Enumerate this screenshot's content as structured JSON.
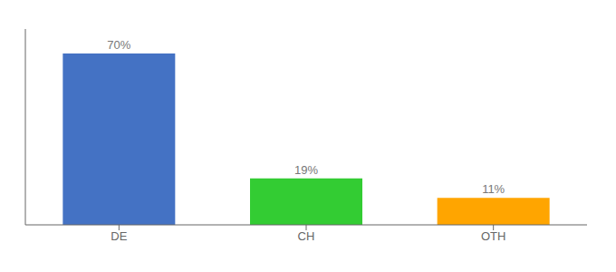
{
  "chart_data": {
    "type": "bar",
    "categories": [
      "DE",
      "CH",
      "OTH"
    ],
    "values": [
      70,
      19,
      11
    ],
    "value_labels": [
      "70%",
      "19%",
      "11%"
    ],
    "data_labels": true,
    "colors": [
      "#4472C4",
      "#33CC33",
      "#FFA500"
    ],
    "ylim": [
      0,
      80
    ],
    "tick_labels": "x",
    "grid": false
  }
}
